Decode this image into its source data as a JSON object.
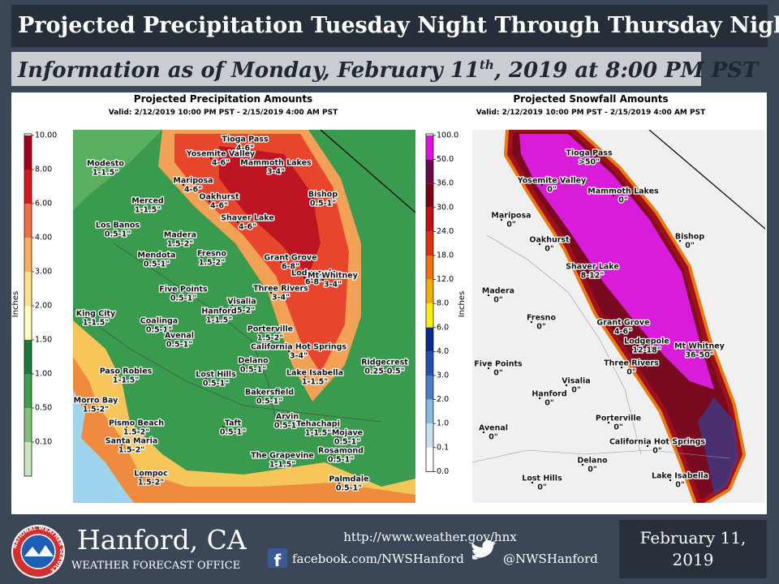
{
  "header": {
    "title": "Projected Precipitation Tuesday Night Through Thursday Night",
    "subtitle": [
      "Information as of Monday, February 11",
      "th",
      ", 2019 at 8:00 PM PST"
    ]
  },
  "precip_map": {
    "title": "Projected Precipitation Amounts",
    "valid": "Valid: 2/12/2019 10:00 PM PST - 2/15/2019 4:00 AM PST",
    "legend_label": "Inches",
    "legend": [
      "10.00",
      "8.00",
      "6.00",
      "4.00",
      "3.00",
      "2.00",
      "1.50",
      "1.00",
      "0.50",
      "0.10"
    ],
    "places": [
      {
        "name": "Tioga Pass",
        "amount": "4-6\""
      },
      {
        "name": "Yosemite Valley",
        "amount": "4-6\""
      },
      {
        "name": "Mammoth Lakes",
        "amount": "3-4\""
      },
      {
        "name": "Modesto",
        "amount": "1-1.5\""
      },
      {
        "name": "Mariposa",
        "amount": "4-6\""
      },
      {
        "name": "Oakhurst",
        "amount": "4-6\""
      },
      {
        "name": "Bishop",
        "amount": "0.5-1\""
      },
      {
        "name": "Merced",
        "amount": "1-1.5\""
      },
      {
        "name": "Shaver Lake",
        "amount": "4-6\""
      },
      {
        "name": "Los Banos",
        "amount": "0.5-1\""
      },
      {
        "name": "Madera",
        "amount": "1.5-2\""
      },
      {
        "name": "Mendota",
        "amount": "0.5-1\""
      },
      {
        "name": "Fresno",
        "amount": "1.5-2\""
      },
      {
        "name": "Grant Grove",
        "amount": "6-8\""
      },
      {
        "name": "Lodgepole",
        "amount": "6-8\""
      },
      {
        "name": "Mt Whitney",
        "amount": "3-4\""
      },
      {
        "name": "Five Points",
        "amount": "0.5-1\""
      },
      {
        "name": "Three Rivers",
        "amount": "3-4\""
      },
      {
        "name": "Visalia",
        "amount": "1.5-2\""
      },
      {
        "name": "Hanford",
        "amount": "1-1.5\""
      },
      {
        "name": "King City",
        "amount": "1-1.5\""
      },
      {
        "name": "Coalinga",
        "amount": "0.5-1\""
      },
      {
        "name": "Avenal",
        "amount": "0.5-1\""
      },
      {
        "name": "Porterville",
        "amount": "1.5-2\""
      },
      {
        "name": "California Hot Springs",
        "amount": "3-4\""
      },
      {
        "name": "Delano",
        "amount": "0.5-1\""
      },
      {
        "name": "Ridgecrest",
        "amount": "0.25-0.5\""
      },
      {
        "name": "Lake Isabella",
        "amount": "1-1.5\""
      },
      {
        "name": "Paso Robles",
        "amount": "1-1.5\""
      },
      {
        "name": "Lost Hills",
        "amount": "0.5-1\""
      },
      {
        "name": "Bakersfield",
        "amount": "0.5-1\""
      },
      {
        "name": "Morro Bay",
        "amount": "1.5-2\""
      },
      {
        "name": "Arvin",
        "amount": "0.5-1\""
      },
      {
        "name": "Tehachapi",
        "amount": "1-1.5\""
      },
      {
        "name": "Mojave",
        "amount": "0.5-1\""
      },
      {
        "name": "Taft",
        "amount": "0.5-1\""
      },
      {
        "name": "Pismo Beach",
        "amount": "1.5-2\""
      },
      {
        "name": "Santa Maria",
        "amount": "1.5-2\""
      },
      {
        "name": "Rosamond",
        "amount": "0.5-1\""
      },
      {
        "name": "The Grapevine",
        "amount": "1-1.5\""
      },
      {
        "name": "Lompoc",
        "amount": "1.5-2\""
      },
      {
        "name": "Palmdale",
        "amount": "0.5-1\""
      }
    ]
  },
  "snow_map": {
    "title": "Projected Snowfall Amounts",
    "valid": "Valid: 2/12/2019 10:00 PM PST - 2/15/2019 4:00 AM PST",
    "legend_label": "Inches",
    "legend": [
      "100.0",
      "50.0",
      "36.0",
      "30.0",
      "24.0",
      "18.0",
      "12.0",
      "8.0",
      "6.0",
      "4.0",
      "3.0",
      "2.0",
      "1.0",
      "0.1",
      "0.0"
    ],
    "places": [
      {
        "name": "Tioga Pass",
        "amount": ">50\""
      },
      {
        "name": "Yosemite Valley",
        "amount": "0\""
      },
      {
        "name": "Mammoth Lakes",
        "amount": "0\""
      },
      {
        "name": "Mariposa",
        "amount": "0\""
      },
      {
        "name": "Oakhurst",
        "amount": "0\""
      },
      {
        "name": "Bishop",
        "amount": "0\""
      },
      {
        "name": "Shaver Lake",
        "amount": "8-12\""
      },
      {
        "name": "Madera",
        "amount": "0\""
      },
      {
        "name": "Fresno",
        "amount": "0\""
      },
      {
        "name": "Grant Grove",
        "amount": "4-6\""
      },
      {
        "name": "Lodgepole",
        "amount": "12-18\""
      },
      {
        "name": "Mt Whitney",
        "amount": "36-50\""
      },
      {
        "name": "Five Points",
        "amount": "0\""
      },
      {
        "name": "Three Rivers",
        "amount": "0\""
      },
      {
        "name": "Visalia",
        "amount": "0\""
      },
      {
        "name": "Hanford",
        "amount": "0\""
      },
      {
        "name": "Porterville",
        "amount": "0\""
      },
      {
        "name": "Avenal",
        "amount": "0\""
      },
      {
        "name": "California Hot Springs",
        "amount": "0\""
      },
      {
        "name": "Delano",
        "amount": "0\""
      },
      {
        "name": "Lost Hills",
        "amount": "0\""
      },
      {
        "name": "Lake Isabella",
        "amount": "0\""
      }
    ]
  },
  "footer": {
    "logo_text": "NATIONAL WEATHER SERVICE",
    "office": "Hanford, CA",
    "office_type": "WEATHER FORECAST OFFICE",
    "url": "http://www.weather.gov/hnx",
    "facebook": "facebook.com/NWSHanford",
    "twitter": "@NWSHanford",
    "date": [
      "February 11,",
      "2019"
    ]
  }
}
